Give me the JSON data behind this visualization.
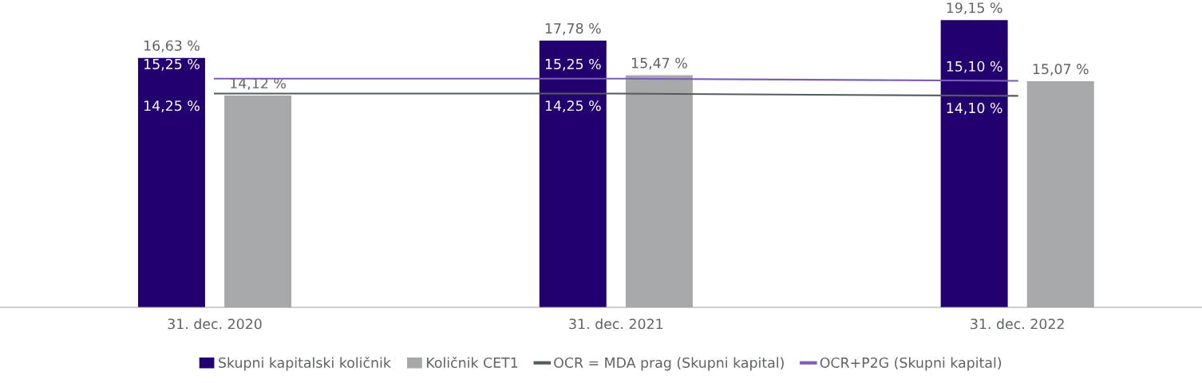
{
  "chart_data": {
    "type": "bar",
    "categories": [
      "31. dec. 2020",
      "31. dec. 2021",
      "31. dec. 2022"
    ],
    "tick_labels": "x",
    "grid": false,
    "legend": "bottom",
    "series": [
      {
        "name": "Skupni kapitalski količnik",
        "color": "#22006e",
        "values": [
          16.63,
          17.78,
          19.15
        ],
        "value_labels": [
          "16,63 %",
          "17,78 %",
          "19,15 %"
        ]
      },
      {
        "name": "Količnik CET1",
        "color": "#a7a8aa",
        "values": [
          14.12,
          15.47,
          15.07
        ],
        "value_labels": [
          "14,12 %",
          "15,47 %",
          "15,07 %"
        ]
      },
      {
        "name": "OCR = MDA prag (Skupni kapital)",
        "type": "line",
        "color": "#555b5e",
        "values": [
          14.25,
          14.25,
          14.1
        ],
        "value_labels": [
          "14,25 %",
          "14,25 %",
          "14,10 %"
        ]
      },
      {
        "name": "OCR+P2G (Skupni kapital)",
        "type": "line",
        "color": "#7c5cba",
        "values": [
          15.25,
          15.25,
          15.1
        ],
        "value_labels": [
          "15,25 %",
          "15,25 %",
          "15,10 %"
        ]
      }
    ]
  }
}
